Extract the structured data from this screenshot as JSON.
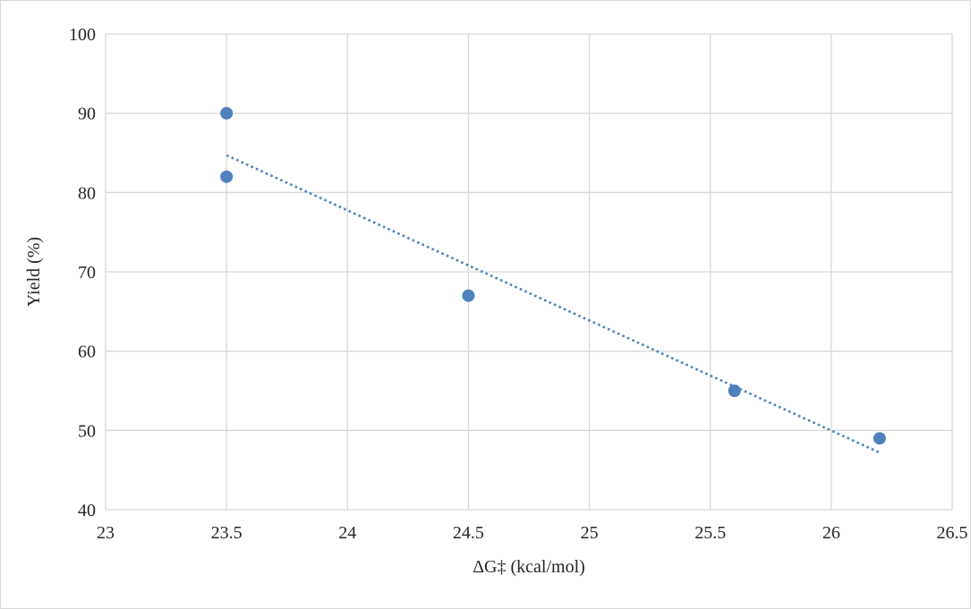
{
  "chart_data": {
    "type": "scatter",
    "title": "",
    "xlabel": "ΔG‡ (kcal/mol)",
    "ylabel": "Yield (%)",
    "xlim": [
      23,
      26.5
    ],
    "ylim": [
      40,
      100
    ],
    "xticks": [
      23,
      23.5,
      24,
      24.5,
      25,
      25.5,
      26,
      26.5
    ],
    "xtick_labels": [
      "23",
      "23.5",
      "24",
      "24.5",
      "25",
      "25.5",
      "26",
      "26.5"
    ],
    "yticks": [
      40,
      50,
      60,
      70,
      80,
      90,
      100
    ],
    "ytick_labels": [
      "40",
      "50",
      "60",
      "70",
      "80",
      "90",
      "100"
    ],
    "grid": true,
    "legend": "none",
    "series": [
      {
        "x": [
          23.5,
          23.5,
          24.5,
          25.6,
          26.2
        ],
        "y": [
          90,
          82,
          67,
          55,
          49
        ],
        "color": "#4f81bd",
        "marker": "circle"
      }
    ],
    "trendline": {
      "type": "linear",
      "style": "dotted",
      "color": "#4f81bd",
      "x": [
        23.5,
        26.2
      ],
      "y": [
        84.7,
        47.2
      ]
    },
    "colors": {
      "grid": "#d9d9d9",
      "text": "#262626",
      "border": "#d9d9d9"
    }
  }
}
